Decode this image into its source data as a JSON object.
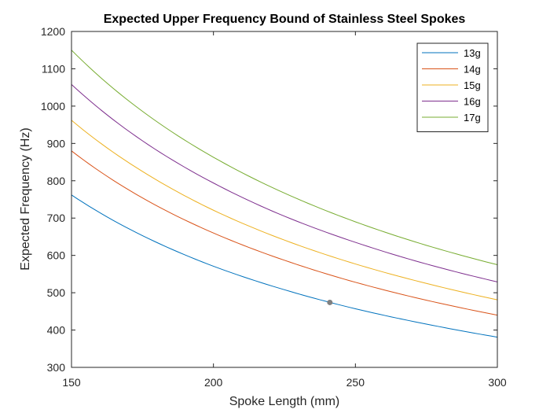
{
  "chart_data": {
    "type": "line",
    "title": "Expected Upper Frequency Bound of Stainless Steel Spokes",
    "xlabel": "Spoke Length (mm)",
    "ylabel": "Expected Frequency (Hz)",
    "xlim": [
      150,
      300
    ],
    "ylim": [
      300,
      1200
    ],
    "xticks": [
      150,
      200,
      250,
      300
    ],
    "yticks": [
      300,
      400,
      500,
      600,
      700,
      800,
      900,
      1000,
      1100,
      1200
    ],
    "grid": false,
    "box": true,
    "legend_position": "top-right",
    "x": [
      150,
      175,
      200,
      225,
      250,
      275,
      300
    ],
    "series": [
      {
        "name": "13g",
        "color": "#0072BD",
        "values": [
          762,
          653,
          571,
          508,
          457,
          416,
          381
        ]
      },
      {
        "name": "14g",
        "color": "#D95319",
        "values": [
          880,
          754,
          660,
          587,
          528,
          480,
          440
        ]
      },
      {
        "name": "15g",
        "color": "#EDB120",
        "values": [
          962,
          825,
          721,
          641,
          577,
          525,
          481
        ]
      },
      {
        "name": "16g",
        "color": "#7E2F8E",
        "values": [
          1058,
          907,
          794,
          705,
          635,
          577,
          529
        ]
      },
      {
        "name": "17g",
        "color": "#77AC30",
        "values": [
          1150,
          986,
          863,
          767,
          690,
          627,
          575
        ]
      }
    ],
    "marker": {
      "x": 241,
      "y": 474,
      "color": "#808080"
    }
  }
}
